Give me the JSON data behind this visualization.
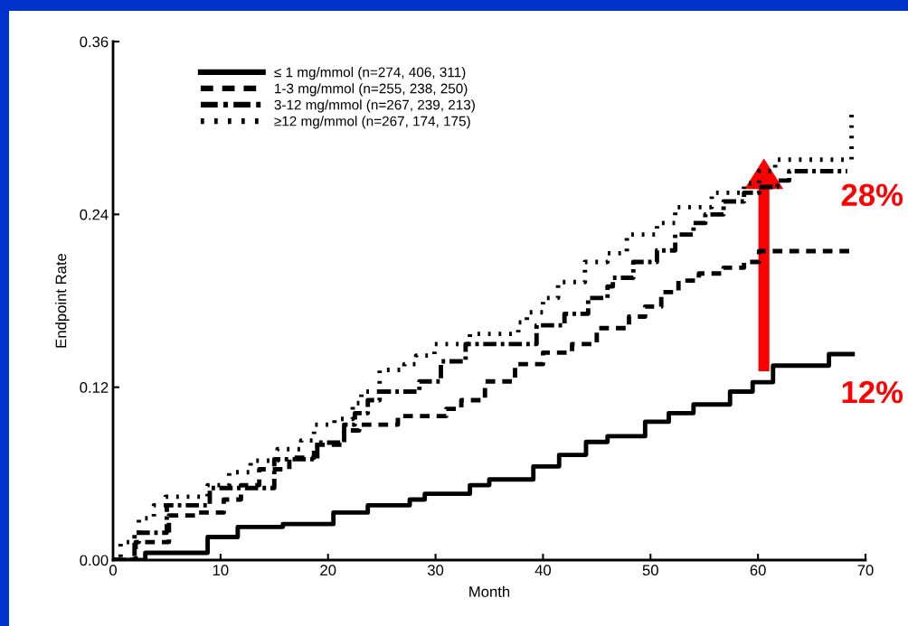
{
  "chart_data": {
    "type": "step",
    "xlabel": "Month",
    "ylabel": "Endpoint Rate",
    "xlim": [
      0,
      70
    ],
    "xticks": [
      0,
      10,
      20,
      30,
      40,
      50,
      60,
      70
    ],
    "ylim": [
      0,
      0.36
    ],
    "yticks": [
      {
        "value": 0,
        "label": "0.00"
      },
      {
        "value": 0.12,
        "label": "0.12"
      },
      {
        "value": 0.24,
        "label": "0.24"
      },
      {
        "value": 0.36,
        "label": "0.36"
      }
    ],
    "grid": false,
    "legend": "top left",
    "series": [
      {
        "name": "≤ 1 mg/mmol (n=274, 406, 311)",
        "color": "#000000",
        "line_style": "solid",
        "x": [
          0,
          3,
          8.8,
          9.4,
          11.6,
          15.8,
          20.5,
          23.7,
          27.6,
          29,
          33.2,
          35,
          39.1,
          41.5,
          44,
          46,
          49.5,
          51.7,
          54,
          57.4,
          59.5,
          61.4,
          66.6,
          68.8
        ],
        "values": [
          0,
          0.005,
          0.016,
          0.016,
          0.023,
          0.025,
          0.033,
          0.038,
          0.042,
          0.046,
          0.052,
          0.056,
          0.065,
          0.073,
          0.082,
          0.086,
          0.096,
          0.102,
          0.108,
          0.117,
          0.1235,
          0.135,
          0.143,
          0.143
        ]
      },
      {
        "name": "1-3 mg/mmol (n=255, 238, 250)",
        "color": "#000000",
        "line_style": "dashed",
        "x": [
          0,
          2.1,
          5.2,
          8,
          10.3,
          11.9,
          13.6,
          16.4,
          18.7,
          21.5,
          22.9,
          26.5,
          31,
          32.4,
          34.6,
          37.4,
          40,
          42.7,
          45,
          48,
          49.5,
          51,
          52.6,
          54.5,
          56.8,
          58.7,
          60.1,
          68.8
        ],
        "values": [
          0,
          0.0125,
          0.031,
          0.033,
          0.042,
          0.052,
          0.063,
          0.071,
          0.08,
          0.09,
          0.094,
          0.1,
          0.105,
          0.111,
          0.124,
          0.136,
          0.144,
          0.15,
          0.161,
          0.169,
          0.176,
          0.186,
          0.194,
          0.199,
          0.203,
          0.207,
          0.2145,
          0.2145
        ]
      },
      {
        "name": "3-12 mg/mmol (n=267, 239, 213)",
        "color": "#000000",
        "line_style": "dashdot",
        "x": [
          0,
          2,
          5,
          9,
          15,
          19,
          21.5,
          22.5,
          23.7,
          24.8,
          28.5,
          30.5,
          32.8,
          39.4,
          42,
          44.2,
          46,
          46.5,
          48.4,
          50.6,
          52.3,
          54,
          55.1,
          56.8,
          58.7,
          60.1,
          61.8,
          62.9,
          68.3
        ],
        "values": [
          0,
          0.019,
          0.038,
          0.05,
          0.07,
          0.0815,
          0.094,
          0.102,
          0.111,
          0.117,
          0.124,
          0.138,
          0.15,
          0.163,
          0.171,
          0.182,
          0.19,
          0.196,
          0.207,
          0.215,
          0.226,
          0.234,
          0.24,
          0.249,
          0.255,
          0.259,
          0.2635,
          0.27,
          0.27
        ]
      },
      {
        "name": "≥12 mg/mmol (n=267, 174, 175)",
        "color": "#000000",
        "line_style": "dotted",
        "x": [
          0,
          0.7,
          2.4,
          3.8,
          4.9,
          8.8,
          10.8,
          12.8,
          15.3,
          17.5,
          18.7,
          20.6,
          22.3,
          23.1,
          24.8,
          27.1,
          28.2,
          29.9,
          33.2,
          37.7,
          38.5,
          40,
          41.4,
          43.9,
          46,
          47.8,
          50.6,
          52.3,
          55.7,
          58.7,
          60.1,
          61.6,
          68.3,
          68.7
        ],
        "values": [
          0,
          0.0125,
          0.029,
          0.038,
          0.044,
          0.052,
          0.061,
          0.069,
          0.077,
          0.083,
          0.094,
          0.098,
          0.109,
          0.117,
          0.132,
          0.136,
          0.142,
          0.15,
          0.157,
          0.165,
          0.172,
          0.182,
          0.193,
          0.207,
          0.213,
          0.226,
          0.234,
          0.245,
          0.255,
          0.2615,
          0.27,
          0.278,
          0.278,
          0.31
        ]
      }
    ],
    "annotations": [
      {
        "text": "28%",
        "x": 61.6,
        "y": 0.278
      },
      {
        "text": "12%",
        "x": 59.5,
        "y": 0.1235
      }
    ]
  }
}
